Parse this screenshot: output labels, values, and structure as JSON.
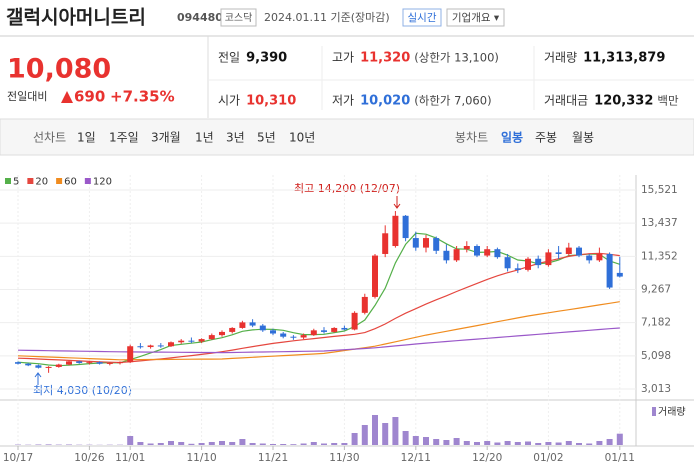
{
  "header": {
    "title": "갤럭시아머니트리",
    "code": "094480",
    "market": "코스닥",
    "date": "2024.01.11 기준(장마감)",
    "realtime": "실시간",
    "company": "기업개요 ▾"
  },
  "quote": {
    "price": "10,080",
    "change_label": "전일대비",
    "change": "690",
    "change_pct": "+7.35%",
    "items": [
      {
        "label": "전일",
        "value": "9,390"
      },
      {
        "label": "고가",
        "value": "11,320",
        "note": "(상한가 13,100)"
      },
      {
        "label": "거래량",
        "value": "11,313,879"
      },
      {
        "label": "시가",
        "value": "10,310"
      },
      {
        "label": "저가",
        "value": "10,020",
        "note": "(하한가 7,060)"
      },
      {
        "label": "거래대금",
        "value": "120,332",
        "note": "백만"
      }
    ]
  },
  "tabs": {
    "line_label": "선차트",
    "line_items": [
      "1일",
      "1주일",
      "3개월",
      "1년",
      "3년",
      "5년",
      "10년"
    ],
    "candle_label": "봉차트",
    "candle_items": [
      "일봉",
      "주봉",
      "월봉"
    ]
  },
  "chart_data": {
    "type": "candlestick",
    "categories": [
      "10/17",
      null,
      null,
      null,
      null,
      null,
      null,
      "10/26",
      null,
      null,
      null,
      "11/01",
      null,
      null,
      null,
      null,
      null,
      null,
      "11/10",
      null,
      null,
      null,
      null,
      null,
      null,
      "11/21",
      null,
      null,
      null,
      null,
      null,
      null,
      "11/30",
      null,
      null,
      null,
      null,
      null,
      null,
      "12/11",
      null,
      null,
      null,
      null,
      null,
      null,
      "12/20",
      null,
      null,
      null,
      null,
      null,
      "01/02",
      null,
      null,
      null,
      null,
      null,
      null,
      "01/11"
    ],
    "open": [
      4700,
      4600,
      4500,
      4350,
      4400,
      4550,
      4750,
      4650,
      4700,
      4600,
      4650,
      4700,
      5700,
      5650,
      5750,
      5700,
      5950,
      6050,
      6000,
      6150,
      6400,
      6600,
      6850,
      7200,
      7000,
      6700,
      6500,
      6300,
      6250,
      6400,
      6700,
      6600,
      6850,
      6750,
      7800,
      8800,
      11500,
      12000,
      13900,
      12500,
      11900,
      12500,
      11700,
      11100,
      11800,
      12000,
      11400,
      11800,
      11300,
      10600,
      10500,
      11200,
      10800,
      11600,
      11500,
      11900,
      11400,
      11100,
      11500,
      10310
    ],
    "high": [
      4750,
      4650,
      4550,
      4450,
      4600,
      4800,
      4800,
      4750,
      4750,
      4700,
      4750,
      5800,
      5900,
      5800,
      5900,
      6000,
      6150,
      6250,
      6200,
      6500,
      6700,
      6900,
      7300,
      7400,
      7100,
      6800,
      6600,
      6400,
      6500,
      6800,
      6900,
      6900,
      7000,
      7900,
      9000,
      11500,
      13300,
      14200,
      13950,
      12900,
      12700,
      12600,
      12100,
      12000,
      12300,
      12100,
      12000,
      11900,
      11500,
      10900,
      11300,
      11400,
      11800,
      12000,
      12200,
      12000,
      11500,
      11900,
      11600,
      11320
    ],
    "low": [
      4550,
      4450,
      4300,
      4030,
      4350,
      4500,
      4600,
      4550,
      4550,
      4500,
      4550,
      4650,
      5550,
      5550,
      5600,
      5650,
      5850,
      5900,
      5900,
      6100,
      6300,
      6500,
      6800,
      6900,
      6600,
      6400,
      6200,
      6100,
      6150,
      6350,
      6500,
      6550,
      6700,
      6700,
      7700,
      8700,
      11300,
      11900,
      12300,
      11700,
      11600,
      11500,
      10900,
      11000,
      11600,
      11300,
      11300,
      11200,
      10400,
      10300,
      10400,
      10600,
      10700,
      11200,
      11400,
      11300,
      10900,
      11000,
      9300,
      10020
    ],
    "close": [
      4600,
      4500,
      4350,
      4400,
      4550,
      4750,
      4650,
      4700,
      4600,
      4650,
      4700,
      5700,
      5650,
      5750,
      5700,
      5950,
      6050,
      6000,
      6150,
      6400,
      6600,
      6850,
      7200,
      7000,
      6700,
      6500,
      6300,
      6250,
      6400,
      6700,
      6600,
      6850,
      6750,
      7800,
      8800,
      11400,
      12800,
      13900,
      12500,
      11900,
      12500,
      11700,
      11100,
      11800,
      12000,
      11400,
      11800,
      11300,
      10600,
      10500,
      11200,
      10800,
      11600,
      11500,
      11900,
      11400,
      11100,
      11500,
      9390,
      10080
    ],
    "up_color": "#e8322f",
    "down_color": "#2f6fd8",
    "series": [
      {
        "name": "5",
        "color": "#55b04a",
        "values": [
          4700,
          4650,
          4600,
          4520,
          4480,
          4510,
          4550,
          4610,
          4650,
          4670,
          4660,
          4860,
          5060,
          5280,
          5490,
          5750,
          5820,
          5890,
          5970,
          6110,
          6240,
          6420,
          6640,
          6730,
          6770,
          6760,
          6700,
          6550,
          6430,
          6430,
          6450,
          6560,
          6660,
          6940,
          7350,
          8270,
          9350,
          10940,
          12100,
          12800,
          12740,
          12500,
          12140,
          11820,
          11800,
          11600,
          11620,
          11660,
          11420,
          11120,
          11060,
          10880,
          10940,
          11120,
          11400,
          11440,
          11500,
          11480,
          11060,
          10850
        ]
      },
      {
        "name": "20",
        "color": "#e5473f",
        "values": [
          4950,
          4930,
          4900,
          4870,
          4840,
          4810,
          4780,
          4750,
          4720,
          4700,
          4680,
          4720,
          4780,
          4840,
          4900,
          4970,
          5040,
          5110,
          5190,
          5270,
          5360,
          5460,
          5570,
          5680,
          5780,
          5880,
          5960,
          6040,
          6110,
          6180,
          6250,
          6320,
          6380,
          6450,
          6560,
          6800,
          7100,
          7450,
          7780,
          8060,
          8350,
          8620,
          8870,
          9140,
          9400,
          9650,
          9900,
          10130,
          10320,
          10500,
          10700,
          10900,
          11050,
          11200,
          11350,
          11450,
          11520,
          11540,
          11480,
          11400
        ]
      },
      {
        "name": "60",
        "color": "#f08c1f",
        "values": [
          5100,
          5075,
          5050,
          5025,
          5000,
          4975,
          4950,
          4925,
          4900,
          4875,
          4850,
          4855,
          4860,
          4865,
          4870,
          4875,
          4880,
          4885,
          4890,
          4895,
          4900,
          4935,
          4970,
          5005,
          5040,
          5075,
          5110,
          5145,
          5180,
          5215,
          5250,
          5340,
          5430,
          5520,
          5610,
          5700,
          5840,
          5980,
          6120,
          6260,
          6400,
          6520,
          6640,
          6760,
          6880,
          7000,
          7120,
          7240,
          7360,
          7480,
          7600,
          7700,
          7800,
          7900,
          8000,
          8100,
          8200,
          8300,
          8400,
          8500
        ]
      },
      {
        "name": "120",
        "color": "#9a58c9",
        "values": [
          5450,
          5440,
          5430,
          5420,
          5410,
          5400,
          5390,
          5380,
          5370,
          5360,
          5350,
          5345,
          5340,
          5335,
          5330,
          5325,
          5320,
          5315,
          5310,
          5305,
          5300,
          5310,
          5320,
          5330,
          5340,
          5350,
          5360,
          5370,
          5380,
          5390,
          5400,
          5440,
          5480,
          5520,
          5560,
          5600,
          5660,
          5720,
          5780,
          5840,
          5900,
          5950,
          6000,
          6050,
          6100,
          6150,
          6200,
          6250,
          6300,
          6350,
          6400,
          6450,
          6500,
          6550,
          6600,
          6650,
          6700,
          6750,
          6800,
          6850
        ]
      }
    ],
    "ylim": [
      2447,
      15961
    ],
    "yticks": [
      {
        "value": 3013,
        "label": "3,013"
      },
      {
        "value": 5098,
        "label": "5,098"
      },
      {
        "value": 7182,
        "label": "7,182"
      },
      {
        "value": 9267,
        "label": "9,267"
      },
      {
        "value": 11352,
        "label": "11,352"
      },
      {
        "value": 13437,
        "label": "13,437"
      },
      {
        "value": 15521,
        "label": "15,521"
      }
    ],
    "grid": true,
    "annotations": [
      "최고 14,200 (12/07)",
      "최저 4,030 (10/20)"
    ],
    "volume_name": "거래량",
    "volume_color": "#9f86cf",
    "volume_ylim": [
      0,
      40000000
    ],
    "volume": [
      400000,
      300000,
      500000,
      600000,
      400000,
      500000,
      300000,
      300000,
      200000,
      300000,
      300000,
      9000000,
      3000000,
      1500000,
      2000000,
      4000000,
      3000000,
      1200000,
      2000000,
      3000000,
      4000000,
      3000000,
      6000000,
      2000000,
      1500000,
      1000000,
      1000000,
      800000,
      1500000,
      3000000,
      1500000,
      2000000,
      2000000,
      12000000,
      20000000,
      30000000,
      22000000,
      28000000,
      14000000,
      9000000,
      8000000,
      6000000,
      5000000,
      7000000,
      4000000,
      3000000,
      4000000,
      2500000,
      4000000,
      3000000,
      3500000,
      2000000,
      3000000,
      2500000,
      4000000,
      2000000,
      1500000,
      4000000,
      6000000,
      11313879
    ]
  }
}
